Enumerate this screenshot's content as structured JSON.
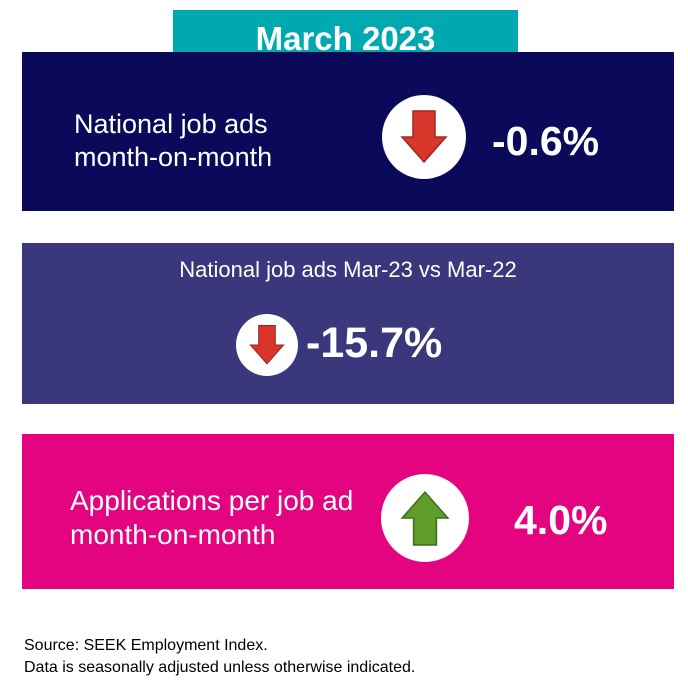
{
  "title": "March 2023",
  "cards": [
    {
      "label_lines": [
        "National job ads",
        "month-on-month"
      ],
      "value": "-0.6%",
      "direction": "down",
      "icon": "arrow-down-icon",
      "background": "#0b0a5a"
    },
    {
      "label": "National job ads Mar-23 vs Mar-22",
      "value": "-15.7%",
      "direction": "down",
      "icon": "arrow-down-icon",
      "background": "#3b377d"
    },
    {
      "label_lines": [
        "Applications per job ad",
        "month-on-month"
      ],
      "value": "4.0%",
      "direction": "up",
      "icon": "arrow-up-icon",
      "background": "#e40480"
    }
  ],
  "footer": {
    "source": "Source: SEEK Employment Index.",
    "note": "Data is seasonally adjusted unless otherwise indicated."
  },
  "colors": {
    "title_bg": "#00a9b0",
    "down_arrow": "#d8362a",
    "up_arrow": "#5f9e2a"
  }
}
